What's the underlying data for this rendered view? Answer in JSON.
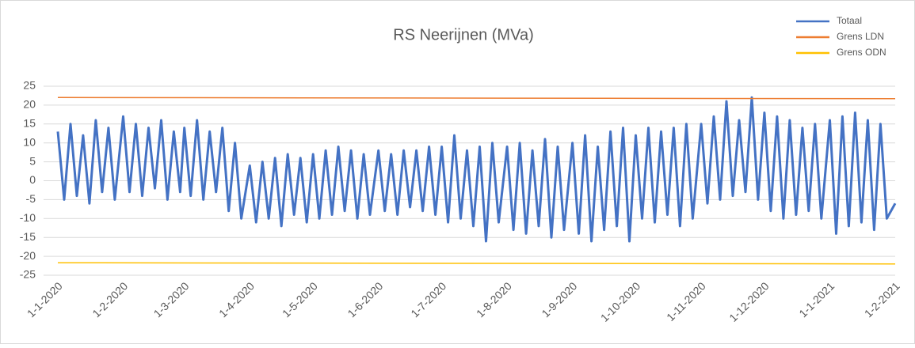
{
  "chart_data": {
    "type": "line",
    "title": "RS Neerijnen  (MVa)",
    "x": [
      "1-1-2020",
      "4-1-2020",
      "7-1-2020",
      "10-1-2020",
      "13-1-2020",
      "16-1-2020",
      "19-1-2020",
      "22-1-2020",
      "25-1-2020",
      "28-1-2020",
      "1-2-2020",
      "4-2-2020",
      "7-2-2020",
      "10-2-2020",
      "13-2-2020",
      "16-2-2020",
      "19-2-2020",
      "22-2-2020",
      "25-2-2020",
      "28-2-2020",
      "1-3-2020",
      "4-3-2020",
      "7-3-2020",
      "10-3-2020",
      "13-3-2020",
      "16-3-2020",
      "19-3-2020",
      "22-3-2020",
      "25-3-2020",
      "28-3-2020",
      "1-4-2020",
      "4-4-2020",
      "7-4-2020",
      "10-4-2020",
      "13-4-2020",
      "16-4-2020",
      "19-4-2020",
      "22-4-2020",
      "25-4-2020",
      "28-4-2020",
      "1-5-2020",
      "4-5-2020",
      "7-5-2020",
      "10-5-2020",
      "13-5-2020",
      "16-5-2020",
      "19-5-2020",
      "22-5-2020",
      "25-5-2020",
      "28-5-2020",
      "1-6-2020",
      "4-6-2020",
      "7-6-2020",
      "10-6-2020",
      "13-6-2020",
      "16-6-2020",
      "19-6-2020",
      "22-6-2020",
      "25-6-2020",
      "28-6-2020",
      "1-7-2020",
      "4-7-2020",
      "7-7-2020",
      "10-7-2020",
      "13-7-2020",
      "16-7-2020",
      "19-7-2020",
      "22-7-2020",
      "25-7-2020",
      "28-7-2020",
      "1-8-2020",
      "4-8-2020",
      "7-8-2020",
      "10-8-2020",
      "13-8-2020",
      "16-8-2020",
      "19-8-2020",
      "22-8-2020",
      "25-8-2020",
      "28-8-2020",
      "1-9-2020",
      "4-9-2020",
      "7-9-2020",
      "10-9-2020",
      "13-9-2020",
      "16-9-2020",
      "19-9-2020",
      "22-9-2020",
      "25-9-2020",
      "28-9-2020",
      "1-10-2020",
      "4-10-2020",
      "7-10-2020",
      "10-10-2020",
      "13-10-2020",
      "16-10-2020",
      "19-10-2020",
      "22-10-2020",
      "25-10-2020",
      "28-10-2020",
      "1-11-2020",
      "4-11-2020",
      "7-11-2020",
      "10-11-2020",
      "13-11-2020",
      "16-11-2020",
      "19-11-2020",
      "22-11-2020",
      "25-11-2020",
      "28-11-2020",
      "1-12-2020",
      "4-12-2020",
      "7-12-2020",
      "10-12-2020",
      "13-12-2020",
      "16-12-2020",
      "19-12-2020",
      "22-12-2020",
      "25-12-2020",
      "28-12-2020",
      "1-1-2021",
      "4-1-2021",
      "7-1-2021",
      "10-1-2021",
      "13-1-2021",
      "16-1-2021",
      "19-1-2021",
      "22-1-2021",
      "25-1-2021",
      "28-1-2021",
      "1-2-2021"
    ],
    "series": [
      {
        "name": "Totaal",
        "color": "#4472c4",
        "values": [
          13,
          -5,
          15,
          -4,
          12,
          -6,
          16,
          -3,
          14,
          -5,
          17,
          -3,
          15,
          -4,
          14,
          -2,
          16,
          -5,
          13,
          -3,
          14,
          -4,
          16,
          -5,
          13,
          -3,
          14,
          -8,
          10,
          -10,
          4,
          -11,
          5,
          -10,
          6,
          -12,
          7,
          -9,
          6,
          -11,
          7,
          -10,
          8,
          -9,
          9,
          -8,
          8,
          -10,
          7,
          -9,
          8,
          -8,
          7,
          -9,
          8,
          -7,
          8,
          -8,
          9,
          -9,
          9,
          -11,
          12,
          -10,
          8,
          -12,
          9,
          -16,
          10,
          -11,
          9,
          -13,
          10,
          -14,
          8,
          -12,
          11,
          -15,
          9,
          -13,
          10,
          -14,
          12,
          -16,
          9,
          -13,
          13,
          -12,
          14,
          -16,
          12,
          -10,
          14,
          -11,
          13,
          -9,
          14,
          -12,
          15,
          -10,
          15,
          -6,
          17,
          -5,
          21,
          -4,
          16,
          -3,
          22,
          -5,
          18,
          -8,
          17,
          -10,
          16,
          -9,
          14,
          -8,
          15,
          -10,
          16,
          -14,
          17,
          -12,
          18,
          -11,
          16,
          -13,
          15,
          -10,
          -6
        ]
      },
      {
        "name": "Grens LDN",
        "color": "#ed7d31",
        "x": [
          "1-1-2020",
          "1-2-2021"
        ],
        "values": [
          22,
          21.7
        ]
      },
      {
        "name": "Grens ODN",
        "color": "#ffc000",
        "x": [
          "1-1-2020",
          "1-2-2021"
        ],
        "values": [
          -21.7,
          -22
        ]
      }
    ],
    "xlim": [
      "1-1-2020",
      "1-2-2021"
    ],
    "xticks": [
      "1-1-2020",
      "1-2-2020",
      "1-3-2020",
      "1-4-2020",
      "1-5-2020",
      "1-6-2020",
      "1-7-2020",
      "1-8-2020",
      "1-9-2020",
      "1-10-2020",
      "1-11-2020",
      "1-12-2020",
      "1-1-2021",
      "1-2-2021"
    ],
    "ylim": [
      -25,
      25
    ],
    "yticks": [
      -25,
      -20,
      -15,
      -10,
      -5,
      0,
      5,
      10,
      15,
      20,
      25
    ],
    "grid": true,
    "legend": "top-right"
  }
}
